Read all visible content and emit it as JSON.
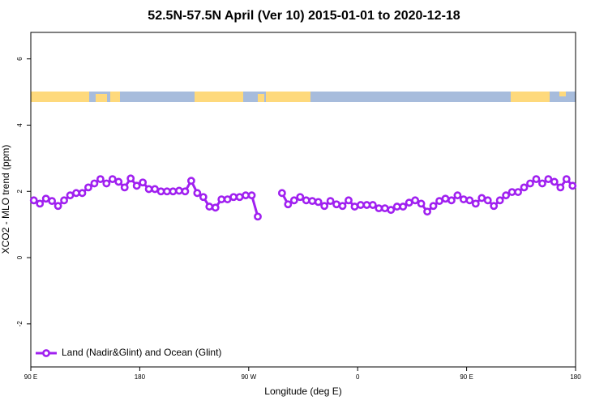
{
  "chart_data": {
    "type": "line",
    "title": "52.5N-57.5N April (Ver 10)   2015-01-01 to 2020-12-18",
    "xlabel": "Longitude (deg E)",
    "ylabel": "XCO2 - MLO trend (ppm)",
    "xlim": [
      90,
      540
    ],
    "ylim": [
      -3.3,
      6.8
    ],
    "xticks": [
      {
        "value": 90,
        "label": "90 E"
      },
      180,
      {
        "value": 270,
        "label": "90 W"
      },
      {
        "value": 360,
        "label": "0"
      },
      {
        "value": 450,
        "label": "90 E"
      },
      {
        "value": 540,
        "label": "180"
      }
    ],
    "yticks": [
      -2,
      0,
      2,
      4,
      6
    ],
    "legend": "bottomleft",
    "x": [
      92.5,
      97.5,
      102.5,
      107.5,
      112.5,
      117.5,
      122.5,
      127.5,
      132.5,
      137.5,
      142.5,
      147.5,
      152.5,
      157.5,
      162.5,
      167.5,
      172.5,
      177.5,
      182.5,
      187.5,
      192.5,
      197.5,
      202.5,
      207.5,
      212.5,
      217.5,
      222.5,
      227.5,
      232.5,
      237.5,
      242.5,
      247.5,
      252.5,
      257.5,
      262.5,
      267.5,
      272.5,
      277.5,
      282.5,
      287.5,
      292.5,
      297.5,
      302.5,
      307.5,
      312.5,
      317.5,
      322.5,
      327.5,
      332.5,
      337.5,
      342.5,
      347.5,
      352.5,
      357.5,
      362.5,
      367.5,
      372.5,
      377.5,
      382.5,
      387.5,
      392.5,
      397.5,
      402.5,
      407.5,
      412.5,
      417.5,
      422.5,
      427.5,
      432.5,
      437.5,
      442.5,
      447.5,
      452.5,
      457.5,
      462.5,
      467.5,
      472.5,
      477.5,
      482.5,
      487.5,
      492.5,
      497.5,
      502.5,
      507.5,
      512.5,
      517.5,
      522.5,
      527.5,
      532.5,
      537.5
    ],
    "series": [
      {
        "name": "Land (Nadir&Glint) and Ocean (Glint)",
        "color": "#a020f0",
        "values": [
          1.73,
          1.63,
          1.78,
          1.71,
          1.56,
          1.73,
          1.88,
          1.95,
          1.95,
          2.12,
          2.24,
          2.37,
          2.24,
          2.37,
          2.29,
          2.12,
          2.39,
          2.17,
          2.27,
          2.07,
          2.07,
          2.0,
          2.0,
          2.0,
          2.02,
          2.0,
          2.32,
          1.95,
          1.83,
          1.54,
          1.51,
          1.76,
          1.76,
          1.83,
          1.83,
          1.88,
          1.88,
          1.24,
          null,
          null,
          null,
          1.95,
          1.61,
          1.73,
          1.83,
          1.73,
          1.71,
          1.68,
          1.56,
          1.71,
          1.61,
          1.56,
          1.73,
          1.54,
          1.59,
          1.59,
          1.59,
          1.49,
          1.49,
          1.44,
          1.54,
          1.54,
          1.66,
          1.73,
          1.63,
          1.39,
          1.56,
          1.71,
          1.78,
          1.73,
          1.88,
          1.76,
          1.73,
          1.63,
          1.8,
          1.73,
          1.56,
          1.73,
          1.88,
          1.98,
          1.98,
          2.12,
          2.24,
          2.37,
          2.24,
          2.37,
          2.29,
          2.12,
          2.37,
          2.17
        ]
      }
    ]
  }
}
